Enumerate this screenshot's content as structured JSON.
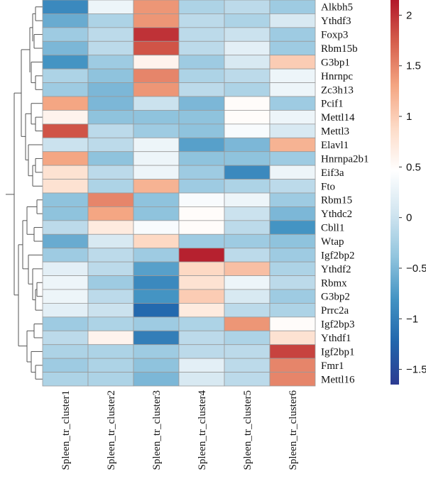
{
  "chart_data": {
    "type": "heatmap",
    "title": "",
    "xlabel": "",
    "ylabel": "",
    "columns": [
      "Spleen_tr_cluster1",
      "Spleen_tr_cluster2",
      "Spleen_tr_cluster3",
      "Spleen_tr_cluster4",
      "Spleen_tr_cluster5",
      "Spleen_tr_cluster6"
    ],
    "rows": [
      "Alkbh5",
      "Ythdf3",
      "Foxp3",
      "Rbm15b",
      "G3bp1",
      "Hnrnpc",
      "Zc3h13",
      "Pcif1",
      "Mettl14",
      "Mettl3",
      "Elavl1",
      "Hnrnpa2b1",
      "Eif3a",
      "Fto",
      "Rbm15",
      "Ythdc2",
      "Cbll1",
      "Wtap",
      "Igf2bp2",
      "Ythdf2",
      "Rbmx",
      "G3bp2",
      "Prrc2a",
      "Igf2bp3",
      "Ythdf1",
      "Igf2bp1",
      "Fmr1",
      "Mettl16"
    ],
    "values": [
      [
        -0.9,
        0.3,
        1.4,
        -0.2,
        -0.1,
        -0.3
      ],
      [
        -0.6,
        -0.2,
        1.4,
        -0.1,
        -0.2,
        0.1
      ],
      [
        -0.3,
        -0.1,
        2.0,
        -0.1,
        0.0,
        -0.3
      ],
      [
        -0.5,
        -0.1,
        1.8,
        -0.1,
        0.2,
        -0.3
      ],
      [
        -0.8,
        -0.3,
        0.6,
        -0.3,
        0.1,
        1.0
      ],
      [
        -0.2,
        -0.4,
        1.5,
        -0.2,
        -0.1,
        0.3
      ],
      [
        -0.3,
        -0.5,
        1.4,
        -0.1,
        -0.2,
        0.3
      ],
      [
        1.3,
        -0.5,
        0.0,
        -0.5,
        0.5,
        -0.3
      ],
      [
        0.6,
        -0.4,
        -0.4,
        -0.4,
        0.5,
        0.3
      ],
      [
        1.8,
        -0.1,
        -0.3,
        -0.4,
        0.4,
        0.1
      ],
      [
        0.0,
        -0.1,
        0.3,
        -0.7,
        -0.5,
        1.2
      ],
      [
        1.3,
        -0.4,
        0.3,
        -0.4,
        -0.4,
        -0.3
      ],
      [
        0.8,
        -0.1,
        0.3,
        -0.3,
        -0.9,
        0.3
      ],
      [
        0.8,
        -0.2,
        1.2,
        -0.3,
        -0.2,
        -0.1
      ],
      [
        -0.4,
        1.5,
        -0.4,
        0.4,
        0.3,
        -0.3
      ],
      [
        -0.4,
        1.3,
        -0.4,
        0.5,
        0.0,
        -0.5
      ],
      [
        -0.1,
        0.7,
        0.4,
        0.5,
        -0.1,
        -0.8
      ],
      [
        -0.6,
        0.1,
        0.9,
        -0.3,
        -0.3,
        -0.4
      ],
      [
        -0.3,
        -0.1,
        -0.3,
        2.1,
        -0.1,
        -0.3
      ],
      [
        0.2,
        -0.1,
        -0.7,
        0.9,
        1.1,
        -0.2
      ],
      [
        0.3,
        -0.3,
        -0.9,
        0.8,
        0.3,
        -0.1
      ],
      [
        0.3,
        -0.1,
        -0.8,
        1.0,
        0.1,
        -0.3
      ],
      [
        0.2,
        0.0,
        -1.2,
        0.7,
        -0.1,
        -0.2
      ],
      [
        -0.3,
        -0.2,
        -0.3,
        -0.2,
        1.4,
        0.5
      ],
      [
        -0.1,
        0.6,
        -1.0,
        -0.1,
        -0.2,
        0.8
      ],
      [
        -0.2,
        -0.2,
        -0.3,
        -0.1,
        -0.1,
        1.9
      ],
      [
        -0.3,
        -0.2,
        -0.4,
        0.2,
        -0.1,
        1.5
      ],
      [
        -0.2,
        -0.2,
        -0.5,
        0.1,
        -0.1,
        1.5
      ]
    ],
    "colorbar": {
      "min": -1.65,
      "max": 2.15,
      "ticks": [
        2,
        1.5,
        1,
        0.5,
        0,
        -0.5,
        -1,
        -1.5
      ],
      "tick_labels": [
        "2",
        "1.5",
        "1",
        "0.5",
        "0",
        "−0.5",
        "−1",
        "−1.5"
      ],
      "colors": [
        "#2c3b91",
        "#2166ac",
        "#4393c3",
        "#92c5de",
        "#d1e5f0",
        "#ffffff",
        "#fddbc7",
        "#f4a582",
        "#d6604d",
        "#b2182b"
      ]
    },
    "dendrogram": "rows",
    "grid": true,
    "legend": "right colorbar"
  }
}
